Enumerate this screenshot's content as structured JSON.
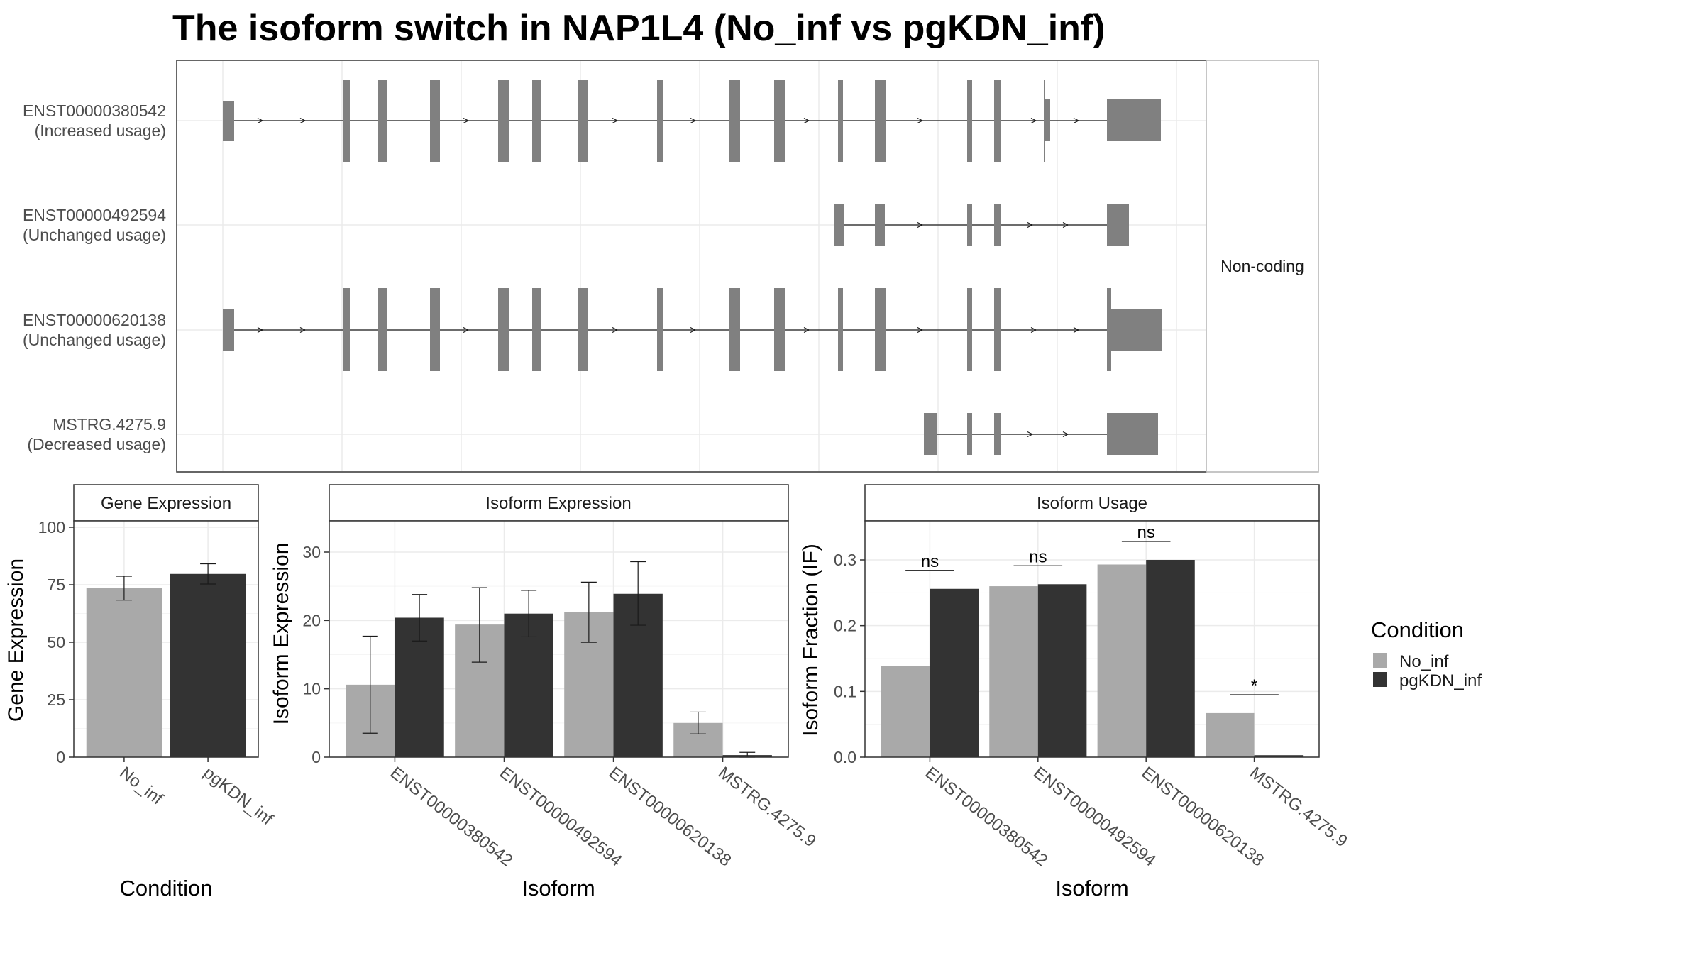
{
  "title": "The isoform switch in NAP1L4 (No_inf vs pgKDN_inf)",
  "structure": {
    "facet_label": "Non-coding",
    "isoforms": [
      {
        "id": "ENST00000380542",
        "usage": "(Increased usage)"
      },
      {
        "id": "ENST00000492594",
        "usage": "(Unchanged usage)"
      },
      {
        "id": "ENST00000620138",
        "usage": "(Unchanged usage)"
      },
      {
        "id": "MSTRG.4275.9",
        "usage": "(Decreased usage)"
      }
    ]
  },
  "legend": {
    "title": "Condition",
    "items": [
      {
        "label": "No_inf",
        "color": "#a9a9a9"
      },
      {
        "label": "pgKDN_inf",
        "color": "#333333"
      }
    ]
  },
  "chart_data": [
    {
      "type": "bar",
      "title": "Gene Expression",
      "xlabel": "Condition",
      "ylabel": "Gene Expression",
      "ylim": [
        0,
        100
      ],
      "yticks": [
        0,
        25,
        50,
        75,
        100
      ],
      "categories": [
        "No_inf",
        "pgKDN_inf"
      ],
      "values": [
        73.5,
        79.7
      ],
      "error_low": [
        68.3,
        75.3
      ],
      "error_high": [
        78.7,
        84.1
      ]
    },
    {
      "type": "bar",
      "title": "Isoform Expression",
      "xlabel": "Isoform",
      "ylabel": "Isoform Expression",
      "ylim": [
        0,
        30
      ],
      "yticks": [
        0,
        10,
        20,
        30
      ],
      "categories": [
        "ENST00000380542",
        "ENST00000492594",
        "ENST00000620138",
        "MSTRG.4275.9"
      ],
      "series": [
        {
          "name": "No_inf",
          "values": [
            10.6,
            19.4,
            21.2,
            5.0
          ],
          "error_low": [
            3.5,
            13.9,
            16.8,
            3.4
          ],
          "error_high": [
            17.7,
            24.8,
            25.6,
            6.6
          ]
        },
        {
          "name": "pgKDN_inf",
          "values": [
            20.4,
            21.0,
            23.9,
            0.3
          ],
          "error_low": [
            17.0,
            17.6,
            19.3,
            0.0
          ],
          "error_high": [
            23.8,
            24.4,
            28.6,
            0.7
          ]
        }
      ]
    },
    {
      "type": "bar",
      "title": "Isoform Usage",
      "xlabel": "Isoform",
      "ylabel": "Isoform Fraction (IF)",
      "ylim": [
        0,
        0.3
      ],
      "yticks": [
        "0.0",
        "0.1",
        "0.2",
        "0.3"
      ],
      "categories": [
        "ENST00000380542",
        "ENST00000492594",
        "ENST00000620138",
        "MSTRG.4275.9"
      ],
      "series": [
        {
          "name": "No_inf",
          "values": [
            0.139,
            0.26,
            0.293,
            0.067
          ]
        },
        {
          "name": "pgKDN_inf",
          "values": [
            0.256,
            0.263,
            0.3,
            0.003
          ]
        }
      ],
      "significance": [
        "ns",
        "ns",
        "ns",
        "*"
      ]
    }
  ]
}
